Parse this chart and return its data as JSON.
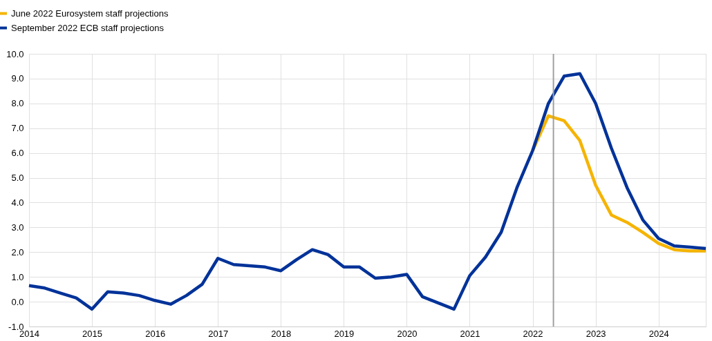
{
  "chart_data": {
    "type": "line",
    "x": [
      2014,
      2014.25,
      2014.5,
      2014.75,
      2015,
      2015.25,
      2015.5,
      2015.75,
      2016,
      2016.25,
      2016.5,
      2016.75,
      2017,
      2017.25,
      2017.5,
      2017.75,
      2018,
      2018.25,
      2018.5,
      2018.75,
      2019,
      2019.25,
      2019.5,
      2019.75,
      2020,
      2020.25,
      2020.5,
      2020.75,
      2021,
      2021.25,
      2021.5,
      2021.75,
      2022,
      2022.25,
      2022.5,
      2022.75,
      2023,
      2023.25,
      2023.5,
      2023.75,
      2024,
      2024.25,
      2024.5,
      2024.75
    ],
    "series": [
      {
        "name": "June 2022 Eurosystem staff projections",
        "color": "#f5b400",
        "values": [
          null,
          null,
          null,
          null,
          null,
          null,
          null,
          null,
          null,
          null,
          null,
          null,
          null,
          null,
          null,
          null,
          null,
          null,
          null,
          null,
          null,
          null,
          null,
          null,
          null,
          null,
          null,
          null,
          null,
          null,
          null,
          null,
          6.1,
          7.5,
          7.3,
          6.5,
          4.7,
          3.5,
          3.2,
          2.8,
          2.35,
          2.1,
          2.05,
          2.05
        ]
      },
      {
        "name": "September 2022 ECB staff projections",
        "color": "#003299",
        "values": [
          0.65,
          0.55,
          0.35,
          0.15,
          -0.3,
          0.4,
          0.35,
          0.25,
          0.05,
          -0.1,
          0.25,
          0.7,
          1.75,
          1.5,
          1.45,
          1.4,
          1.25,
          1.7,
          2.1,
          1.9,
          1.4,
          1.4,
          0.95,
          1.0,
          1.1,
          0.2,
          -0.05,
          -0.3,
          1.05,
          1.8,
          2.8,
          4.6,
          6.1,
          8.0,
          9.1,
          9.2,
          8.0,
          6.2,
          4.6,
          3.3,
          2.55,
          2.25,
          2.2,
          2.15
        ]
      }
    ],
    "xlim": [
      2014,
      2024.75
    ],
    "xticks": [
      2014,
      2015,
      2016,
      2017,
      2018,
      2019,
      2020,
      2021,
      2022,
      2023,
      2024
    ],
    "ylim": [
      -1,
      10
    ],
    "yticks": [
      {
        "value": -1,
        "label": "-1.0"
      },
      {
        "value": 0,
        "label": "0.0"
      },
      {
        "value": 1,
        "label": "1.0"
      },
      {
        "value": 2,
        "label": "2.0"
      },
      {
        "value": 3,
        "label": "3.0"
      },
      {
        "value": 4,
        "label": "4.0"
      },
      {
        "value": 5,
        "label": "5.0"
      },
      {
        "value": 6,
        "label": "6.0"
      },
      {
        "value": 7,
        "label": "7.0"
      },
      {
        "value": 8,
        "label": "8.0"
      },
      {
        "value": 9,
        "label": "9.0"
      },
      {
        "value": 10,
        "label": "10.0"
      }
    ],
    "ref_lines": [
      {
        "axis": "x",
        "value": 2022.33,
        "color": "#a0a0a0"
      }
    ],
    "grid": true,
    "legend": "top left",
    "marker": "none",
    "line_style": "solid"
  }
}
